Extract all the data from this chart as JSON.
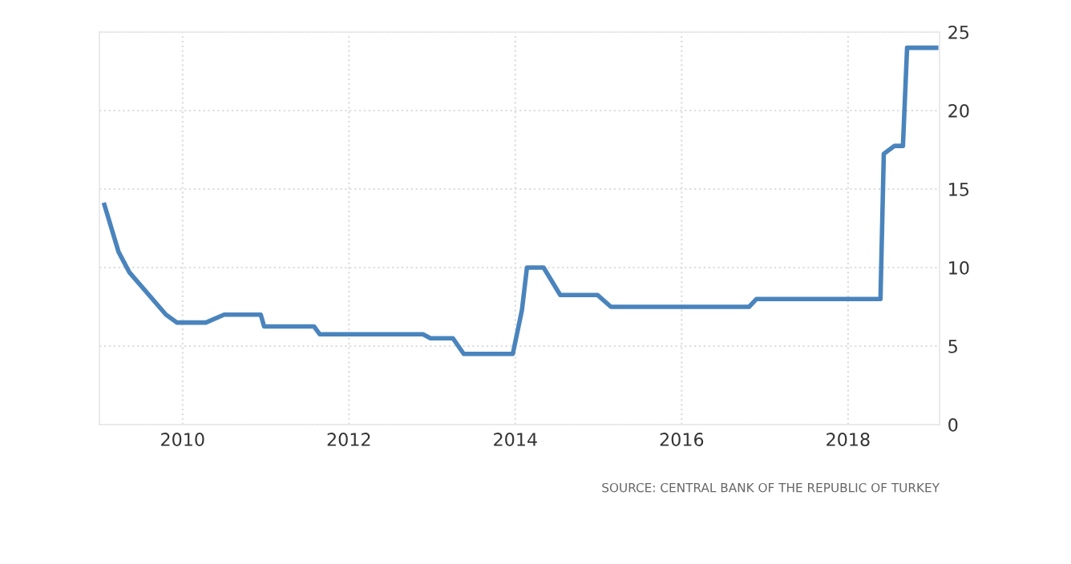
{
  "chart_data": {
    "type": "line",
    "x": [
      2009.06,
      2009.23,
      2009.36,
      2009.8,
      2009.93,
      2010.28,
      2010.5,
      2010.94,
      2010.98,
      2011.58,
      2011.65,
      2012.89,
      2012.98,
      2013.25,
      2013.38,
      2013.97,
      2014.08,
      2014.14,
      2014.34,
      2014.54,
      2014.99,
      2015.15,
      2016.81,
      2016.9,
      2018.39,
      2018.43,
      2018.56,
      2018.66,
      2018.71,
      2019.06
    ],
    "series": [
      {
        "color": "#4a84bd",
        "values": [
          14.0,
          11.0,
          9.7,
          7.0,
          6.5,
          6.5,
          7.0,
          7.0,
          6.25,
          6.25,
          5.75,
          5.75,
          5.5,
          5.5,
          4.5,
          4.5,
          7.3,
          10.0,
          10.0,
          8.25,
          8.25,
          7.5,
          7.5,
          8.0,
          8.0,
          17.25,
          17.75,
          17.75,
          24.0,
          24.0
        ]
      }
    ],
    "xlim": [
      2009.0,
      2019.1
    ],
    "xticks": [
      2010,
      2012,
      2014,
      2016,
      2018
    ],
    "ylim": [
      0,
      25
    ],
    "yticks": [
      0,
      5,
      10,
      15,
      20,
      25
    ],
    "grid": true,
    "marker": "none",
    "line_style": "solid",
    "annotations": [
      "SOURCE: CENTRAL BANK OF THE REPUBLIC OF TURKEY"
    ]
  }
}
